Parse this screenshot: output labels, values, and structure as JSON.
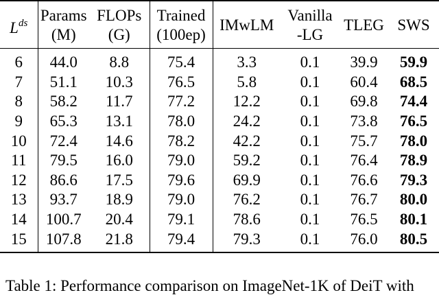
{
  "table": {
    "header": {
      "layers_base": "L",
      "layers_sup": "ds",
      "params_line1": "Params",
      "params_line2": "(M)",
      "flops_line1": "FLOPs",
      "flops_line2": "(G)",
      "trained_line1": "Trained",
      "trained_line2": "(100ep)",
      "imwlm": "IMwLM",
      "vanilla_line1": "Vanilla",
      "vanilla_line2": "-LG",
      "tleg": "TLEG",
      "sws": "SWS"
    },
    "rows": [
      [
        "6",
        "44.0",
        "8.8",
        "75.4",
        "3.3",
        "0.1",
        "39.9",
        "59.9"
      ],
      [
        "7",
        "51.1",
        "10.3",
        "76.5",
        "5.8",
        "0.1",
        "60.4",
        "68.5"
      ],
      [
        "8",
        "58.2",
        "11.7",
        "77.2",
        "12.2",
        "0.1",
        "69.8",
        "74.4"
      ],
      [
        "9",
        "65.3",
        "13.1",
        "78.0",
        "24.2",
        "0.1",
        "73.8",
        "76.5"
      ],
      [
        "10",
        "72.4",
        "14.6",
        "78.2",
        "42.2",
        "0.1",
        "75.7",
        "78.0"
      ],
      [
        "11",
        "79.5",
        "16.0",
        "79.0",
        "59.2",
        "0.1",
        "76.4",
        "78.9"
      ],
      [
        "12",
        "86.6",
        "17.5",
        "79.6",
        "69.9",
        "0.1",
        "76.6",
        "79.3"
      ],
      [
        "13",
        "93.7",
        "18.9",
        "79.0",
        "76.2",
        "0.1",
        "76.7",
        "80.0"
      ],
      [
        "14",
        "100.7",
        "20.4",
        "79.1",
        "78.6",
        "0.1",
        "76.5",
        "80.1"
      ],
      [
        "15",
        "107.8",
        "21.8",
        "79.4",
        "79.3",
        "0.1",
        "76.0",
        "80.5"
      ]
    ]
  },
  "caption": "Table 1: Performance comparison on ImageNet-1K of DeiT with"
}
